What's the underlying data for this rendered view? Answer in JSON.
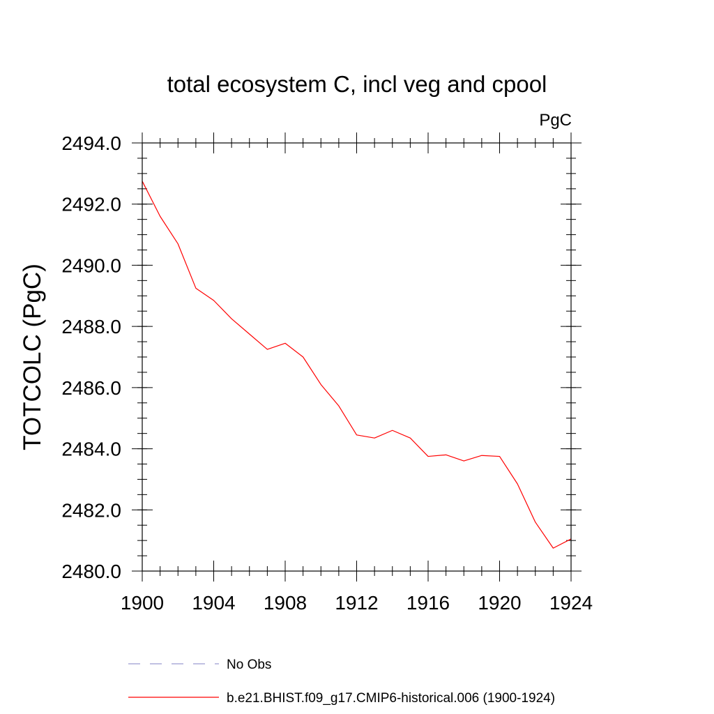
{
  "chart_data": {
    "type": "line",
    "title": "total ecosystem C, incl veg and cpool",
    "units": "PgC",
    "xlabel": "",
    "ylabel": "TOTCOLC  (PgC)",
    "xlim": [
      1900,
      1924
    ],
    "ylim": [
      2480.0,
      2494.0
    ],
    "xticks": [
      {
        "value": 1900,
        "label": "1900"
      },
      {
        "value": 1904,
        "label": "1904"
      },
      {
        "value": 1908,
        "label": "1908"
      },
      {
        "value": 1912,
        "label": "1912"
      },
      {
        "value": 1916,
        "label": "1916"
      },
      {
        "value": 1920,
        "label": "1920"
      },
      {
        "value": 1924,
        "label": "1924"
      }
    ],
    "yticks": [
      {
        "value": 2480,
        "label": "2480.0"
      },
      {
        "value": 2482,
        "label": "2482.0"
      },
      {
        "value": 2484,
        "label": "2484.0"
      },
      {
        "value": 2486,
        "label": "2486.0"
      },
      {
        "value": 2488,
        "label": "2488.0"
      },
      {
        "value": 2490,
        "label": "2490.0"
      },
      {
        "value": 2492,
        "label": "2492.0"
      },
      {
        "value": 2494,
        "label": "2494.0"
      }
    ],
    "x_minor_step": 1,
    "y_minor_step": 0.5,
    "grid": false,
    "legend_position": "bottom",
    "series": [
      {
        "name": "b.e21.BHIST.f09_g17.CMIP6-historical.006 (1900-1924)",
        "color": "#ff0000",
        "dash": "solid",
        "x": [
          1900,
          1901,
          1902,
          1903,
          1904,
          1905,
          1906,
          1907,
          1908,
          1909,
          1910,
          1911,
          1912,
          1913,
          1914,
          1915,
          1916,
          1917,
          1918,
          1919,
          1920,
          1921,
          1922,
          1923,
          1924
        ],
        "values": [
          2492.75,
          2491.6,
          2490.7,
          2489.25,
          2488.85,
          2488.25,
          2487.75,
          2487.25,
          2487.45,
          2487.0,
          2486.1,
          2485.4,
          2484.45,
          2484.35,
          2484.6,
          2484.35,
          2483.75,
          2483.8,
          2483.6,
          2483.78,
          2483.75,
          2482.85,
          2481.6,
          2480.75,
          2481.05
        ]
      }
    ],
    "legend": [
      {
        "label": "No Obs",
        "color": "#9a9ad0",
        "dash": "dashed"
      },
      {
        "label": "b.e21.BHIST.f09_g17.CMIP6-historical.006 (1900-1924)",
        "color": "#ff0000",
        "dash": "solid"
      }
    ]
  }
}
